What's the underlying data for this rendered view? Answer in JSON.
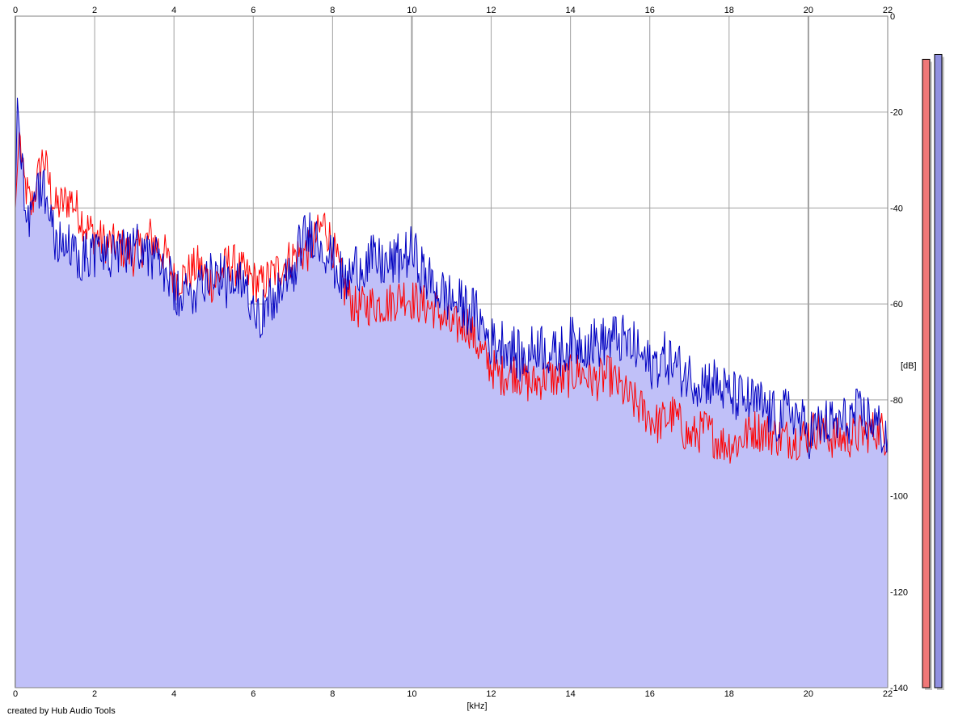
{
  "credit": "created by Hub Audio Tools",
  "chart_data": {
    "type": "area",
    "title": "",
    "xlabel": "[kHz]",
    "ylabel": "[dB]",
    "xlim": [
      0,
      22
    ],
    "ylim": [
      -140,
      0
    ],
    "x_ticks": [
      0,
      2,
      4,
      6,
      8,
      10,
      12,
      14,
      16,
      18,
      20,
      22
    ],
    "y_ticks": [
      -20,
      -40,
      -60,
      -80,
      -100,
      -120,
      -140
    ],
    "y_tick_labels": [
      "-20",
      "-40",
      "-60",
      "-80",
      "-100",
      "-120",
      "-140"
    ],
    "top_y_label": "0",
    "grid": true,
    "legend": "none",
    "colors": {
      "fill": "#c0c0f8",
      "red_series": "#ff0000",
      "blue_series": "#0000c0",
      "grid": "#a0a0a0",
      "meter_red": "#f07878",
      "meter_blue": "#9090e0"
    },
    "series": [
      {
        "color": "red",
        "x": [
          0,
          0.1,
          0.2,
          0.4,
          0.7,
          1.0,
          1.4,
          1.8,
          2.2,
          2.6,
          3.0,
          3.4,
          3.8,
          4.0,
          4.3,
          4.6,
          5.0,
          5.4,
          5.8,
          6.2,
          6.6,
          7.0,
          7.4,
          7.8,
          8.0,
          8.3,
          8.6,
          9.0,
          9.4,
          9.8,
          10.2,
          10.6,
          11.0,
          11.4,
          11.8,
          12.2,
          12.6,
          13.0,
          13.4,
          13.8,
          14.2,
          14.6,
          15.0,
          15.4,
          15.8,
          16.2,
          16.6,
          17.0,
          17.4,
          17.8,
          18.2,
          18.6,
          19.0,
          19.4,
          19.8,
          20.2,
          20.6,
          21.0,
          21.4,
          21.8,
          22.0
        ],
        "values": [
          -40,
          -24,
          -34,
          -40,
          -29,
          -40,
          -38,
          -44,
          -47,
          -48,
          -50,
          -46,
          -50,
          -55,
          -54,
          -52,
          -56,
          -51,
          -54,
          -56,
          -53,
          -50,
          -49,
          -43,
          -48,
          -57,
          -61,
          -60,
          -60,
          -58,
          -60,
          -61,
          -65,
          -64,
          -71,
          -75,
          -74,
          -77,
          -75,
          -76,
          -74,
          -76,
          -75,
          -79,
          -82,
          -85,
          -83,
          -88,
          -86,
          -89,
          -89,
          -86,
          -87,
          -88,
          -88,
          -86,
          -88,
          -88,
          -87,
          -86,
          -88
        ]
      },
      {
        "color": "blue",
        "x": [
          0,
          0.05,
          0.15,
          0.3,
          0.5,
          0.7,
          1.0,
          1.4,
          1.8,
          2.2,
          2.6,
          3.0,
          3.4,
          3.8,
          4.0,
          4.3,
          4.6,
          5.0,
          5.4,
          5.8,
          6.2,
          6.6,
          7.0,
          7.2,
          7.5,
          7.8,
          8.0,
          8.3,
          8.6,
          9.0,
          9.4,
          9.8,
          10.0,
          10.4,
          10.8,
          11.2,
          11.6,
          12.0,
          12.4,
          12.8,
          13.2,
          13.6,
          14.0,
          14.4,
          14.8,
          15.2,
          15.6,
          16.0,
          16.4,
          16.8,
          17.2,
          17.6,
          18.0,
          18.4,
          18.8,
          19.2,
          19.6,
          20.0,
          20.4,
          20.8,
          21.2,
          21.6,
          22.0
        ],
        "values": [
          -40,
          -17,
          -30,
          -42,
          -37,
          -35,
          -46,
          -49,
          -50,
          -49,
          -51,
          -46,
          -50,
          -53,
          -58,
          -59,
          -56,
          -52,
          -57,
          -56,
          -62,
          -58,
          -54,
          -47,
          -45,
          -48,
          -51,
          -56,
          -52,
          -51,
          -52,
          -50,
          -49,
          -55,
          -58,
          -60,
          -62,
          -68,
          -68,
          -72,
          -68,
          -71,
          -68,
          -68,
          -68,
          -67,
          -69,
          -73,
          -71,
          -74,
          -76,
          -76,
          -79,
          -80,
          -81,
          -84,
          -82,
          -87,
          -85,
          -85,
          -83,
          -84,
          -88
        ]
      }
    ]
  },
  "level_meters": [
    {
      "channel": "red",
      "level_db": -9
    },
    {
      "channel": "blue",
      "level_db": -8
    }
  ]
}
